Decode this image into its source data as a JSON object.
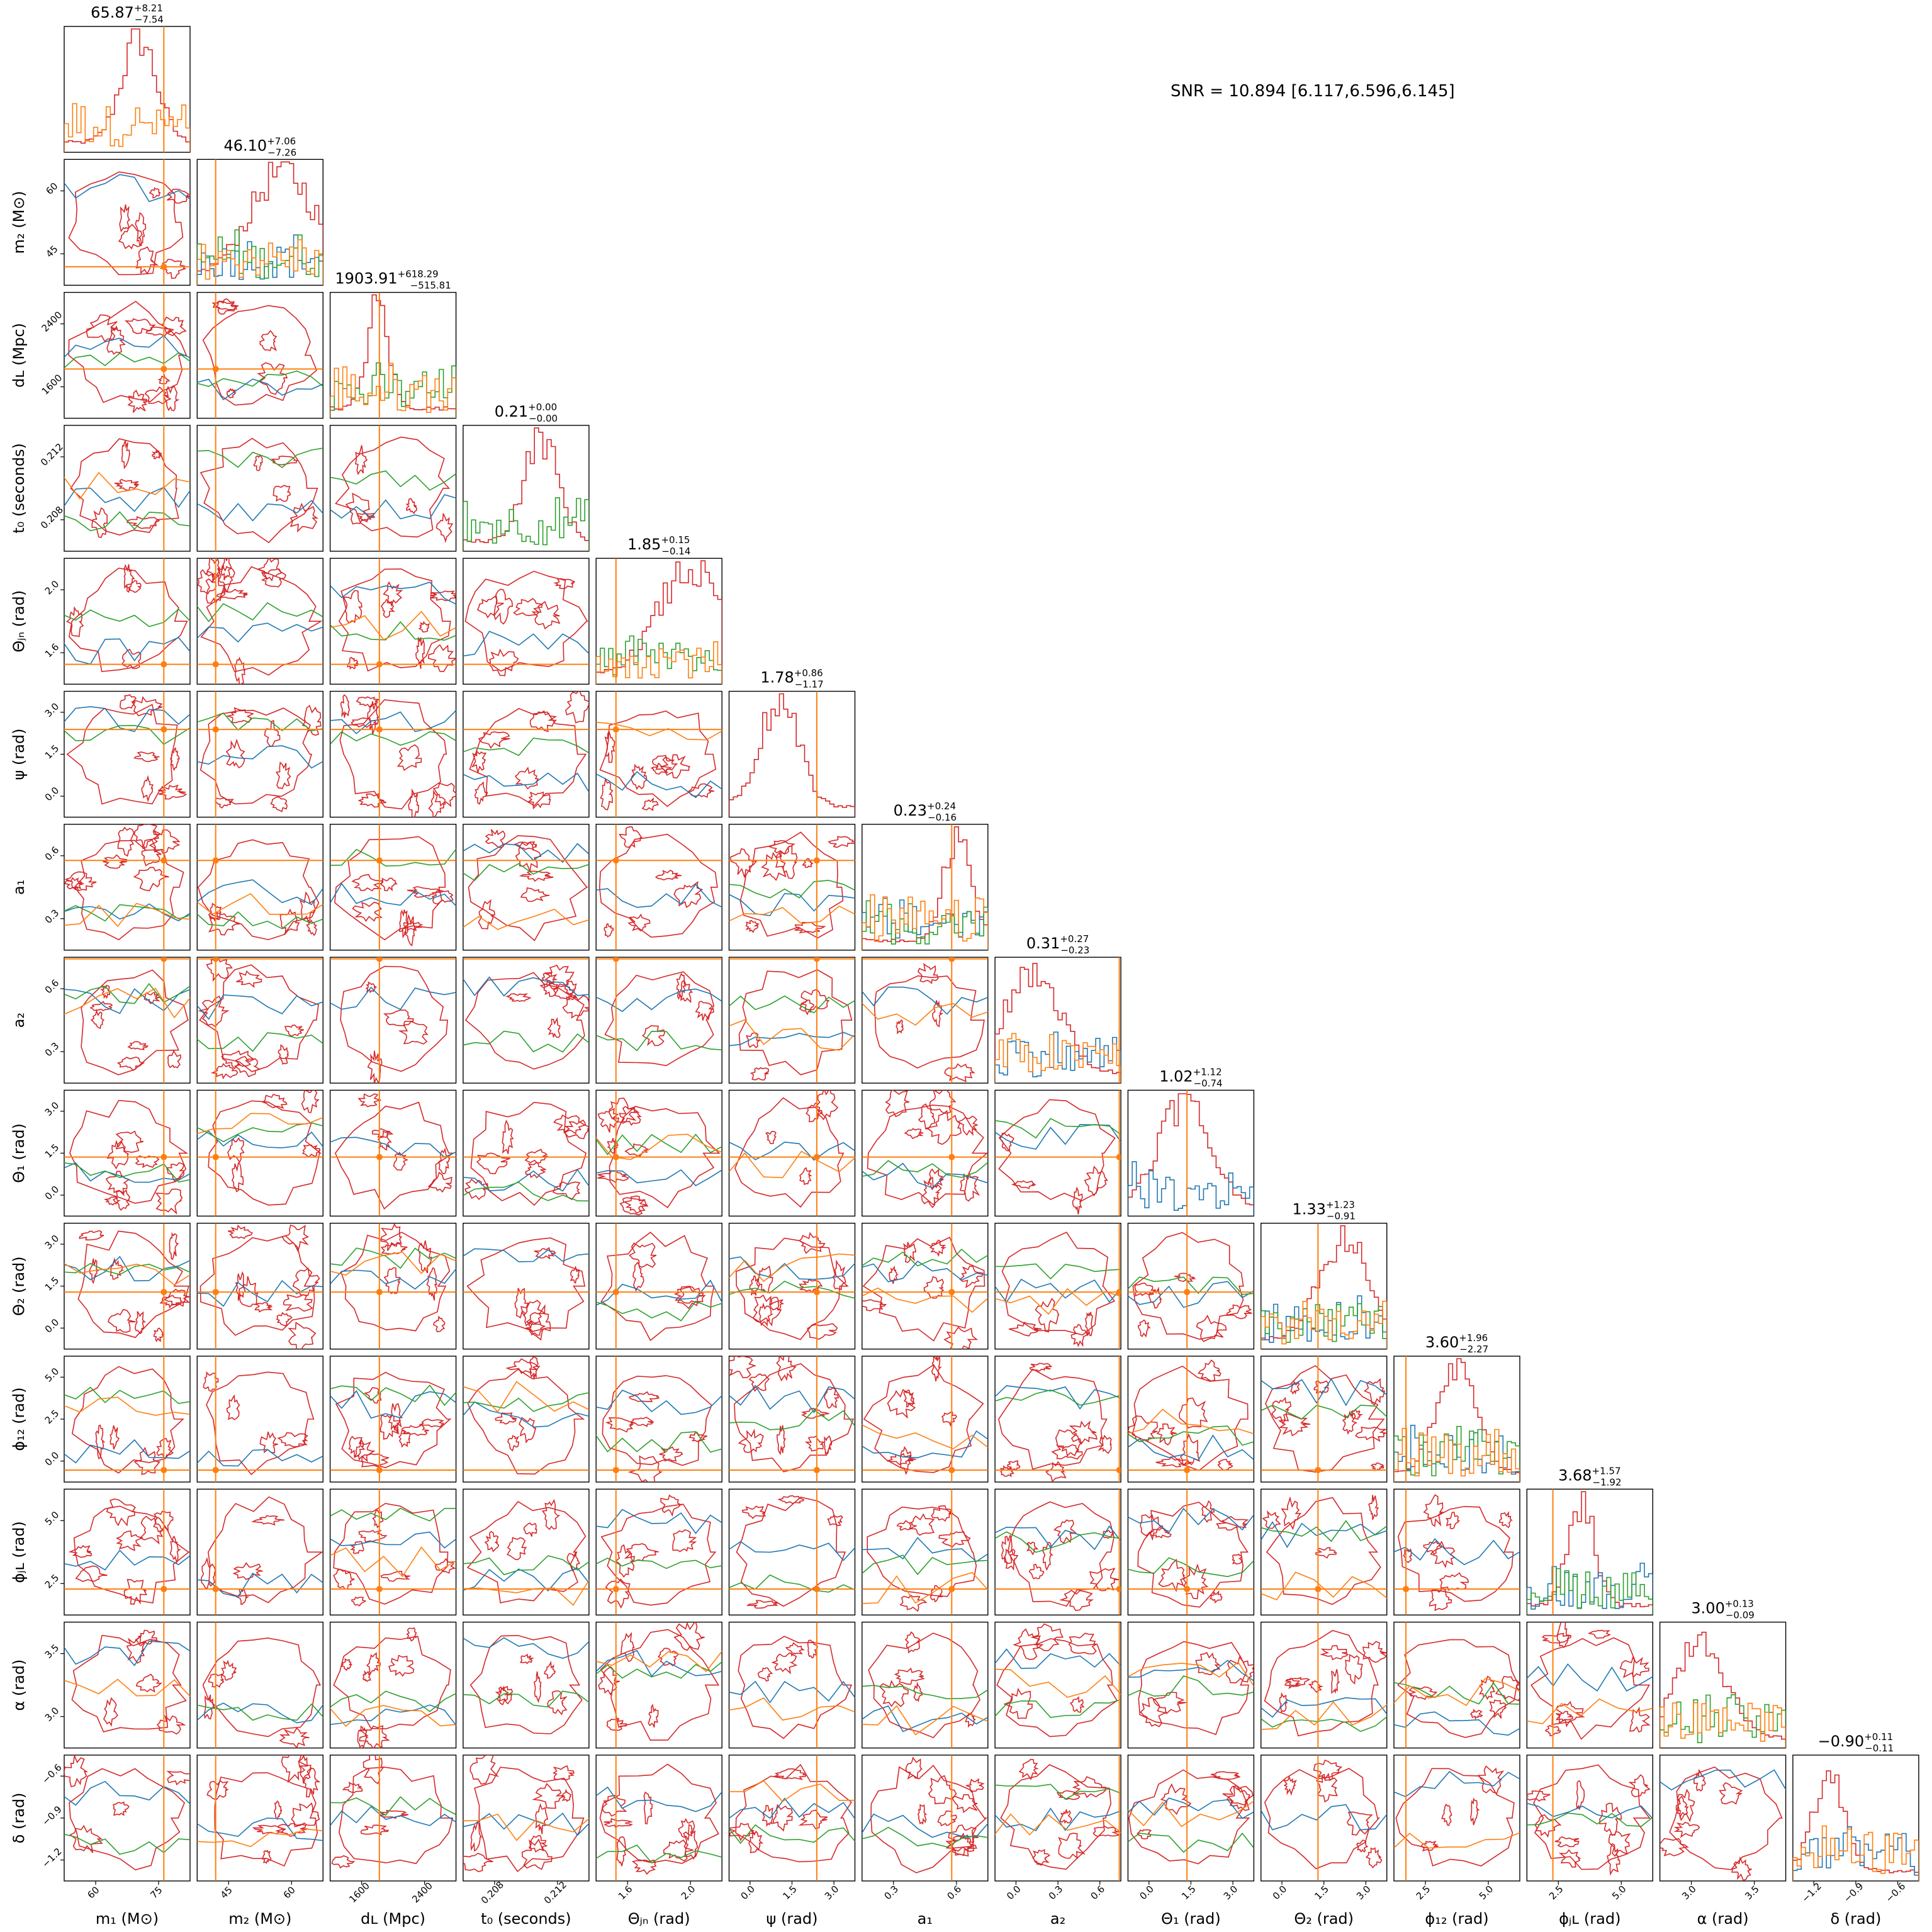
{
  "snr_text": "SNR = 10.894 [6.117,6.596,6.145]",
  "colors": {
    "red": "#d62728",
    "blue": "#1f77b4",
    "green": "#2ca02c",
    "orange": "#ff7f0e"
  },
  "chart_data": {
    "type": "corner",
    "grid": false,
    "params": [
      {
        "key": "m1",
        "label": "m₁ (M⊙)",
        "range": [
          44,
          80
        ],
        "ticks": [
          "60",
          "75"
        ],
        "ytick_labels": [],
        "truth": 72.5,
        "summary": {
          "median": "65.87",
          "plus": "+8.21",
          "minus": "−7.54"
        }
      },
      {
        "key": "m2",
        "label": "m₂ (M⊙)",
        "range": [
          33,
          67
        ],
        "ticks": [
          "45",
          "60"
        ],
        "ytick_labels": [
          "45",
          "60"
        ],
        "truth": 38,
        "summary": {
          "median": "46.10",
          "plus": "+7.06",
          "minus": "−7.26"
        }
      },
      {
        "key": "dL",
        "label": "dʟ (Mpc)",
        "range": [
          1000,
          3300
        ],
        "ticks": [
          "1600",
          "2400"
        ],
        "ytick_labels": [
          "1600",
          "2400"
        ],
        "truth": 1900,
        "summary": {
          "median": "1903.91",
          "plus": "+618.29",
          "minus": "−515.81"
        }
      },
      {
        "key": "t0",
        "label": "t₀ (seconds)",
        "range": [
          0.2055,
          0.2145
        ],
        "ticks": [
          "0.208",
          "0.212"
        ],
        "ytick_labels": [
          "0.208",
          "0.212"
        ],
        "truth": null,
        "summary": {
          "median": "0.21",
          "plus": "+0.00",
          "minus": "−0.00"
        }
      },
      {
        "key": "thjn",
        "label": "Θⱼₙ (rad)",
        "range": [
          1.45,
          2.4
        ],
        "ticks": [
          "1.6",
          "2.0"
        ],
        "ytick_labels": [
          "1.6",
          "2.0"
        ],
        "truth": 1.6,
        "summary": {
          "median": "1.85",
          "plus": "+0.15",
          "minus": "−0.14"
        }
      },
      {
        "key": "psi",
        "label": "ψ (rad)",
        "range": [
          0,
          3.3
        ],
        "ticks": [
          "0.0",
          "1.5",
          "3.0"
        ],
        "ytick_labels": [
          "0.0",
          "1.5",
          "3.0"
        ],
        "truth": 2.3,
        "summary": {
          "median": "1.78",
          "plus": "+0.86",
          "minus": "−1.17"
        }
      },
      {
        "key": "a1",
        "label": "a₁",
        "range": [
          0,
          0.8
        ],
        "ticks": [
          "0.3",
          "0.6"
        ],
        "ytick_labels": [
          "0.3",
          "0.6"
        ],
        "truth": 0.57,
        "summary": {
          "median": "0.23",
          "plus": "+0.24",
          "minus": "−0.16"
        }
      },
      {
        "key": "a2",
        "label": "a₂",
        "range": [
          0,
          0.8
        ],
        "ticks": [
          "0.0",
          "0.3",
          "0.6"
        ],
        "ytick_labels": [
          "0.3",
          "0.6"
        ],
        "truth": 0.79,
        "summary": {
          "median": "0.31",
          "plus": "+0.27",
          "minus": "−0.23"
        }
      },
      {
        "key": "th1",
        "label": "Θ₁ (rad)",
        "range": [
          0,
          3.2
        ],
        "ticks": [
          "0.0",
          "1.5",
          "3.0"
        ],
        "ytick_labels": [
          "0.0",
          "1.5",
          "3.0"
        ],
        "truth": 1.5,
        "summary": {
          "median": "1.02",
          "plus": "+1.12",
          "minus": "−0.74"
        }
      },
      {
        "key": "th2",
        "label": "Θ₂ (rad)",
        "range": [
          0,
          3.2
        ],
        "ticks": [
          "0.0",
          "1.5",
          "3.0"
        ],
        "ytick_labels": [
          "0.0",
          "1.5",
          "3.0"
        ],
        "truth": 1.45,
        "summary": {
          "median": "1.33",
          "plus": "+1.23",
          "minus": "−0.91"
        }
      },
      {
        "key": "phi12",
        "label": "ϕ₁₂ (rad)",
        "range": [
          0,
          6.3
        ],
        "ticks": [
          "2.5",
          "5.0"
        ],
        "ytick_labels": [
          "0.0",
          "2.5",
          "5.0"
        ],
        "truth": 0.6,
        "summary": {
          "median": "3.60",
          "plus": "+1.96",
          "minus": "−2.27"
        }
      },
      {
        "key": "phijl",
        "label": "ϕⱼʟ (rad)",
        "range": [
          0,
          6.3
        ],
        "ticks": [
          "2.5",
          "5.0"
        ],
        "ytick_labels": [
          "2.5",
          "5.0"
        ],
        "truth": 1.3,
        "summary": {
          "median": "3.68",
          "plus": "+1.57",
          "minus": "−1.92"
        }
      },
      {
        "key": "alpha",
        "label": "α (rad)",
        "range": [
          2.75,
          4.0
        ],
        "ticks": [
          "3.0",
          "3.5"
        ],
        "ytick_labels": [
          "3.0",
          "3.5"
        ],
        "truth": null,
        "summary": {
          "median": "3.00",
          "plus": "+0.13",
          "minus": "−0.09"
        }
      },
      {
        "key": "delta",
        "label": "δ (rad)",
        "range": [
          -1.32,
          -0.52
        ],
        "ticks": [
          "−1.2",
          "−0.9",
          "−0.6"
        ],
        "ytick_labels": [
          "−1.2",
          "−0.9",
          "−0.6"
        ],
        "truth": null,
        "summary": {
          "median": "−0.90",
          "plus": "+0.11",
          "minus": "−0.11"
        }
      }
    ],
    "series": [
      {
        "color": "red"
      },
      {
        "color": "blue"
      },
      {
        "color": "green"
      },
      {
        "color": "orange"
      }
    ]
  }
}
